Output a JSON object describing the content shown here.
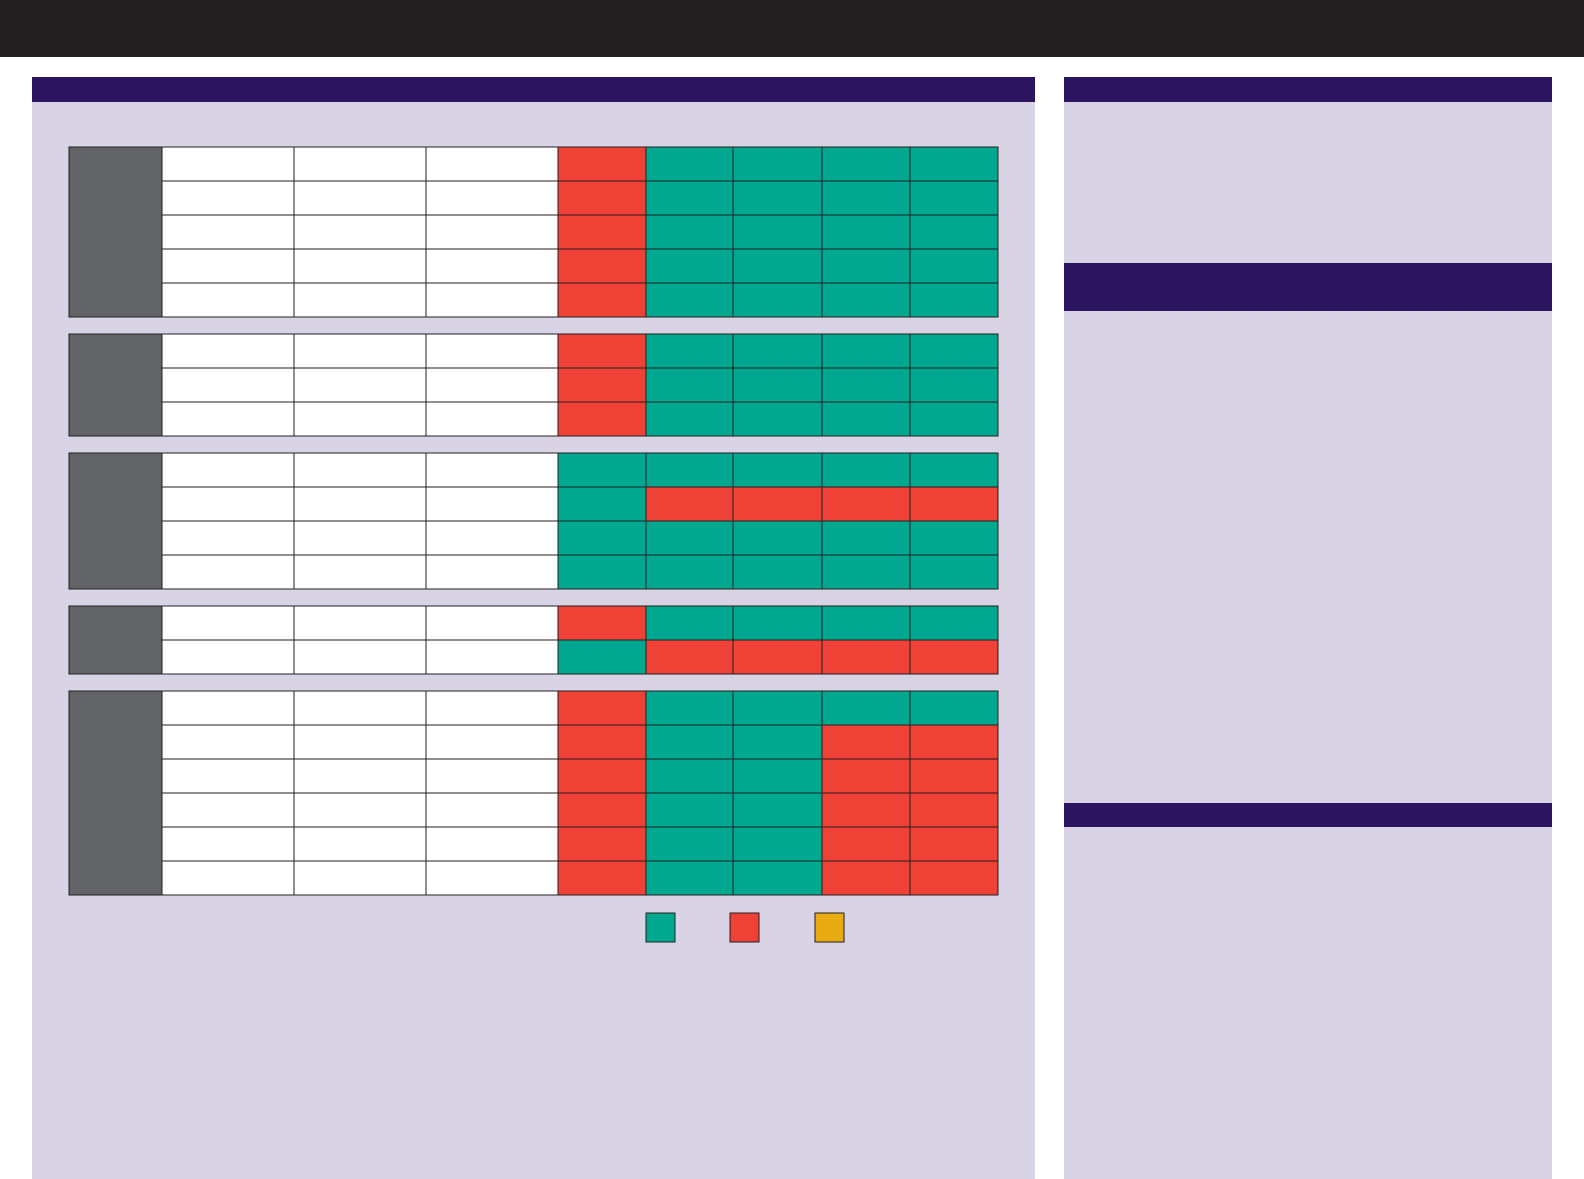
{
  "table": {
    "groups": [
      {
        "rows": [
          [
            "#ef4136",
            "#00a88f",
            "#00a88f",
            "#00a88f",
            "#00a88f"
          ],
          [
            "#ef4136",
            "#00a88f",
            "#00a88f",
            "#00a88f",
            "#00a88f"
          ],
          [
            "#ef4136",
            "#00a88f",
            "#00a88f",
            "#00a88f",
            "#00a88f"
          ],
          [
            "#ef4136",
            "#00a88f",
            "#00a88f",
            "#00a88f",
            "#00a88f"
          ],
          [
            "#ef4136",
            "#00a88f",
            "#00a88f",
            "#00a88f",
            "#00a88f"
          ]
        ]
      },
      {
        "rows": [
          [
            "#ef4136",
            "#00a88f",
            "#00a88f",
            "#00a88f",
            "#00a88f"
          ],
          [
            "#ef4136",
            "#00a88f",
            "#00a88f",
            "#00a88f",
            "#00a88f"
          ],
          [
            "#ef4136",
            "#00a88f",
            "#00a88f",
            "#00a88f",
            "#00a88f"
          ]
        ]
      },
      {
        "rows": [
          [
            "#00a88f",
            "#00a88f",
            "#00a88f",
            "#00a88f",
            "#00a88f"
          ],
          [
            "#00a88f",
            "#ef4136",
            "#ef4136",
            "#ef4136",
            "#ef4136"
          ],
          [
            "#00a88f",
            "#00a88f",
            "#00a88f",
            "#00a88f",
            "#00a88f"
          ],
          [
            "#00a88f",
            "#00a88f",
            "#00a88f",
            "#00a88f",
            "#00a88f"
          ]
        ]
      },
      {
        "rows": [
          [
            "#ef4136",
            "#00a88f",
            "#00a88f",
            "#00a88f",
            "#00a88f"
          ],
          [
            "#00a88f",
            "#ef4136",
            "#ef4136",
            "#ef4136",
            "#ef4136"
          ]
        ]
      },
      {
        "rows": [
          [
            "#ef4136",
            "#00a88f",
            "#00a88f",
            "#00a88f",
            "#00a88f"
          ],
          [
            "#ef4136",
            "#00a88f",
            "#00a88f",
            "#ef4136",
            "#ef4136"
          ],
          [
            "#ef4136",
            "#00a88f",
            "#00a88f",
            "#ef4136",
            "#ef4136"
          ],
          [
            "#ef4136",
            "#00a88f",
            "#00a88f",
            "#ef4136",
            "#ef4136"
          ],
          [
            "#ef4136",
            "#00a88f",
            "#00a88f",
            "#ef4136",
            "#ef4136"
          ],
          [
            "#ef4136",
            "#00a88f",
            "#00a88f",
            "#ef4136",
            "#ef4136"
          ]
        ]
      }
    ]
  },
  "legend": {
    "colors": [
      "#00a88f",
      "#ef4136",
      "#e9ab12"
    ]
  }
}
